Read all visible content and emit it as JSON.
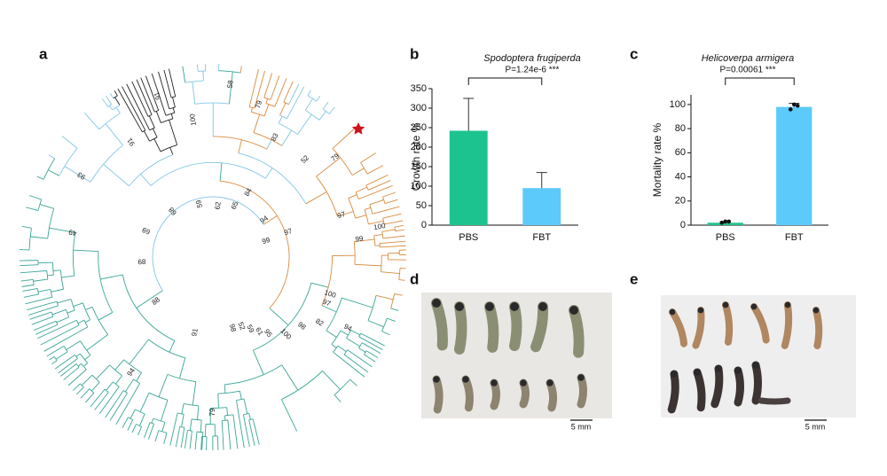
{
  "panel_labels": {
    "a": "a",
    "b": "b",
    "c": "c",
    "d": "d",
    "e": "e"
  },
  "tree": {
    "labels": [
      "91",
      "58",
      "100",
      "79",
      "83",
      "52",
      "79",
      "91",
      "93",
      "49",
      "69",
      "68",
      "88",
      "62",
      "65",
      "84",
      "59",
      "68",
      "94",
      "97",
      "99",
      "97",
      "100",
      "99",
      "91",
      "94",
      "79",
      "98",
      "52",
      "59",
      "61",
      "95",
      "100",
      "98",
      "82",
      "100",
      "97",
      "94"
    ]
  },
  "photos": {
    "d_scale": "5 mm",
    "e_scale": "5 mm"
  },
  "chart_data": [
    {
      "type": "bar",
      "title": "Spodoptera frugiperda",
      "annotation": "P=1.24e-6 ***",
      "ylabel": "Growth rate %",
      "categories": [
        "PBS",
        "FBT"
      ],
      "values": [
        242,
        95
      ],
      "errors": [
        83,
        40
      ],
      "colors": [
        "#1dc38f",
        "#5ccafb"
      ],
      "ylim": [
        0,
        350
      ],
      "yticks": [
        0,
        50,
        100,
        150,
        200,
        250,
        300,
        350
      ]
    },
    {
      "type": "bar",
      "title": "Helicoverpa armigera",
      "annotation": "P=0.00061 ***",
      "ylabel": "Mortality rate %",
      "categories": [
        "PBS",
        "FBT"
      ],
      "values": [
        2,
        98
      ],
      "errors": [
        1,
        3
      ],
      "colors": [
        "#1dc38f",
        "#5ccafb"
      ],
      "points": [
        [
          2,
          3,
          3
        ],
        [
          96,
          100,
          99
        ]
      ],
      "ylim": [
        0,
        108
      ],
      "yticks": [
        0,
        20,
        40,
        60,
        80,
        100
      ]
    }
  ]
}
